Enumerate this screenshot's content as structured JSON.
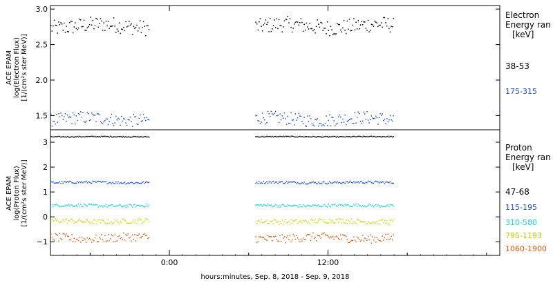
{
  "chart_data": [
    {
      "type": "scatter",
      "panel": "electron",
      "ylabel": [
        "ACE EPAM",
        "log(Electron Flux)",
        "[1/(cm²s ster MeV)]"
      ],
      "ylim": [
        1.3,
        3.05
      ],
      "yticks": [
        1.5,
        2.0,
        2.5,
        3.0
      ],
      "ytick_labels": [
        "1.5",
        "2.0",
        "2.5",
        "3.0"
      ],
      "legend_title": [
        "Electron",
        "Energy ran",
        "[keV]"
      ],
      "series": [
        {
          "name": "38-53",
          "color": "#000000",
          "level": 2.76,
          "spread": 0.11
        },
        {
          "name": "175-315",
          "color": "#1f4fd8",
          "level": 1.45,
          "spread": 0.09
        }
      ]
    },
    {
      "type": "scatter",
      "panel": "proton",
      "ylabel": [
        "ACE EPAM",
        "log(Proton Flux)",
        "[1/(cm²s ster MeV)]"
      ],
      "ylim": [
        -1.55,
        3.5
      ],
      "yticks": [
        -1,
        0,
        1,
        2,
        3
      ],
      "ytick_labels": [
        "−1",
        "0",
        "1",
        "2",
        "3"
      ],
      "legend_title": [
        "Proton",
        "Energy ran",
        "[keV]"
      ],
      "series": [
        {
          "name": "47-68",
          "color": "#000000",
          "level": 3.22,
          "spread": 0.02
        },
        {
          "name": "115-195",
          "color": "#1f4fd8",
          "level": 1.38,
          "spread": 0.05
        },
        {
          "name": "310-580",
          "color": "#13d6d6",
          "level": 0.45,
          "spread": 0.06
        },
        {
          "name": "795-1193",
          "color": "#d4d400",
          "level": -0.18,
          "spread": 0.1
        },
        {
          "name": "1060-1900",
          "color": "#e05a10",
          "level": -0.85,
          "spread": 0.17
        }
      ]
    }
  ],
  "x_axis": {
    "label": "hours:minutes, Sep.  8, 2018 - Sep.  9, 2018",
    "tick_labels": [
      "0:00",
      "12:00"
    ],
    "range_hours": [
      -9,
      25
    ],
    "major_ticks_hours": [
      0,
      12
    ],
    "minor_ticks_hours": [
      -6,
      6,
      18,
      24
    ],
    "data_segments_hours": [
      [
        -9,
        -1.5
      ],
      [
        6.5,
        17
      ]
    ]
  }
}
